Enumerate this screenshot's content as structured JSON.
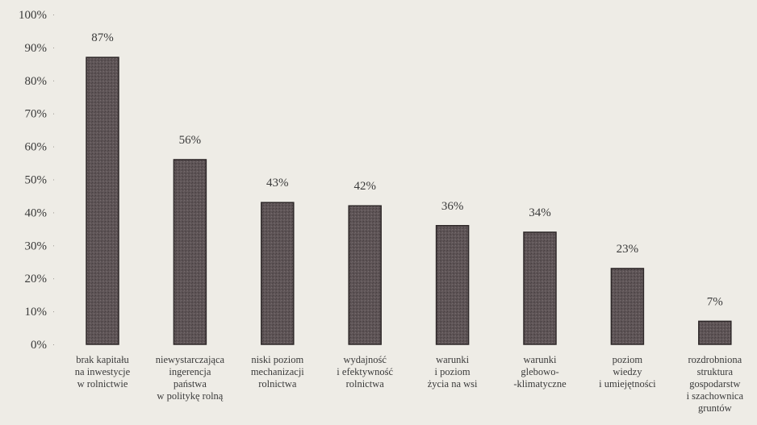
{
  "chart_data": {
    "type": "bar",
    "title": "",
    "xlabel": "",
    "ylabel": "",
    "ylim": [
      0,
      100
    ],
    "yticks": [
      "0%",
      "10%",
      "20%",
      "30%",
      "40%",
      "50%",
      "60%",
      "70%",
      "80%",
      "90%",
      "100%"
    ],
    "grid": false,
    "categories": [
      [
        "brak kapitału",
        "na inwestycje",
        "w rolnictwie"
      ],
      [
        "niewystarczająca",
        "ingerencja",
        "państwa",
        "w politykę rolną"
      ],
      [
        "niski poziom",
        "mechanizacji",
        "rolnictwa"
      ],
      [
        "wydajność",
        "i efektywność",
        "rolnictwa"
      ],
      [
        "warunki",
        "i poziom",
        "życia na wsi"
      ],
      [
        "warunki",
        "glebowo-",
        "-klimatyczne"
      ],
      [
        "poziom",
        "wiedzy",
        "i umiejętności"
      ],
      [
        "rozdrobniona",
        "struktura",
        "gospodarstw",
        "i szachownica",
        "gruntów"
      ]
    ],
    "values": [
      87,
      56,
      43,
      42,
      36,
      34,
      23,
      7
    ],
    "data_labels": [
      "87%",
      "56%",
      "43%",
      "42%",
      "36%",
      "34%",
      "23%",
      "7%"
    ],
    "bar_color": "#5e5456"
  }
}
